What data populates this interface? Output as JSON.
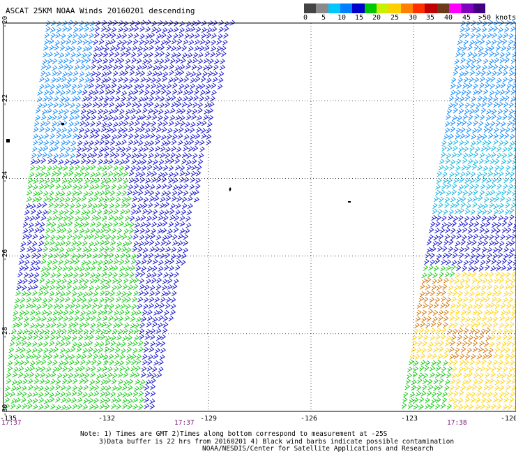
{
  "title": "ASCAT 25KM NOAA Winds 20160201 descending",
  "colorbar": {
    "colors": [
      "#444444",
      "#8a8a8a",
      "#00c8ff",
      "#0080ff",
      "#0000cc",
      "#00c800",
      "#c8f000",
      "#ffd000",
      "#ff8000",
      "#ff3000",
      "#c00000",
      "#6a3a1a",
      "#ff00ff",
      "#8000c0",
      "#400080"
    ],
    "labels": [
      "0",
      "5",
      "10",
      "15",
      "20",
      "25",
      "30",
      "35",
      "40",
      "45",
      ">50 knots"
    ]
  },
  "axes": {
    "x_ticks": [
      "-135",
      "-132",
      "-129",
      "-126",
      "-123",
      "-120"
    ],
    "y_ticks": [
      "-20",
      "-22",
      "-24",
      "-26",
      "-28",
      "-30"
    ],
    "x_range": [
      -135,
      -120
    ],
    "y_range": [
      -30,
      -20
    ]
  },
  "time_labels": [
    "17:37",
    "17:37",
    "17:38"
  ],
  "notes": [
    "Note: 1) Times are GMT 2)Times along bottom correspond to measurement at -25S",
    "3)Data buffer is 22 hrs from 20160201 4) Black wind barbs indicate possible contamination",
    "NOAA/NESDIS/Center for Satellite Applications and Research"
  ],
  "legend_speed_colors": {
    "blue": "#0000cc",
    "green": "#00c800",
    "yellow": "#ffd000",
    "orange": "#d07000",
    "cyan": "#00b0e0",
    "teal": "#0080ff"
  }
}
